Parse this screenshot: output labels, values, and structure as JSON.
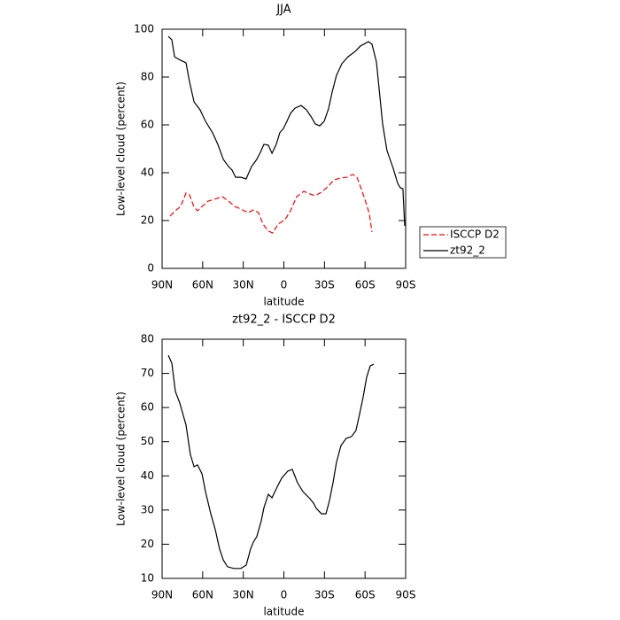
{
  "chart_data": [
    {
      "type": "line",
      "title": "JJA",
      "xlabel": "latitude",
      "ylabel": "Low-level cloud (percent)",
      "xlim": [
        90,
        -90
      ],
      "xticks": [
        {
          "value": 90,
          "label": "90N"
        },
        {
          "value": 60,
          "label": "60N"
        },
        {
          "value": 30,
          "label": "30N"
        },
        0,
        {
          "value": -30,
          "label": "30S"
        },
        {
          "value": -60,
          "label": "60S"
        },
        {
          "value": -90,
          "label": "90S"
        }
      ],
      "ylim": [
        0,
        100
      ],
      "yticks": [
        0,
        20,
        40,
        60,
        80,
        100
      ],
      "legend": "right",
      "series": [
        {
          "name": "ISCCP D2",
          "color": "#ff0000",
          "dashed": true,
          "x": [
            84.1,
            80.2,
            76.3,
            72.3,
            69.7,
            66.4,
            63.8,
            60.5,
            56.0,
            51.4,
            45.5,
            40.9,
            36.3,
            31.8,
            26.5,
            22.6,
            18.7,
            15.4,
            11.5,
            8.2,
            4.3,
            -0.9,
            -4.9,
            -9.5,
            -14.7,
            -19.3,
            -23.2,
            -27.8,
            -32.4,
            -37.0,
            -42.2,
            -46.8,
            -50.7,
            -54.0,
            -57.2,
            -60.5,
            -63.1,
            -65.1
          ],
          "values": [
            21.9,
            24.1,
            25.9,
            31.5,
            30.7,
            25.6,
            24.1,
            25.9,
            28.1,
            28.9,
            30.0,
            28.1,
            25.9,
            24.8,
            23.3,
            24.4,
            23.3,
            18.5,
            15.6,
            14.8,
            18.5,
            20.4,
            24.1,
            30.0,
            32.2,
            31.1,
            30.4,
            31.9,
            34.1,
            37.0,
            37.8,
            38.1,
            39.3,
            38.1,
            33.3,
            27.8,
            23.0,
            15.2
          ]
        },
        {
          "name": "zt92_2",
          "color": "#000000",
          "dashed": false,
          "x": [
            85.4,
            82.8,
            80.8,
            76.3,
            72.3,
            69.7,
            66.4,
            61.9,
            57.9,
            52.7,
            48.8,
            44.8,
            40.9,
            38.3,
            35.7,
            31.8,
            27.9,
            23.9,
            20.0,
            17.4,
            14.7,
            11.5,
            8.8,
            5.6,
            3.0,
            0.3,
            -2.3,
            -4.9,
            -8.2,
            -12.7,
            -16.7,
            -20.6,
            -23.2,
            -26.5,
            -29.8,
            -33.0,
            -35.7,
            -38.9,
            -42.9,
            -47.4,
            -52.7,
            -56.6,
            -59.9,
            -62.5,
            -65.1,
            -68.4,
            -73.0,
            -76.2,
            -80.8,
            -84.1,
            -86.0,
            -88.0,
            -89.3
          ],
          "values": [
            97.0,
            95.6,
            88.5,
            87.0,
            86.0,
            78.0,
            69.6,
            66.3,
            61.5,
            56.7,
            51.9,
            45.6,
            42.6,
            41.1,
            38.1,
            38.1,
            37.4,
            42.6,
            45.6,
            48.5,
            51.9,
            51.5,
            48.1,
            51.9,
            56.7,
            58.5,
            61.5,
            64.8,
            67.0,
            68.1,
            66.3,
            63.0,
            60.4,
            59.6,
            61.5,
            66.7,
            73.7,
            80.7,
            85.6,
            88.5,
            90.7,
            93.0,
            94.0,
            94.8,
            93.7,
            86.3,
            60.4,
            49.3,
            41.9,
            35.6,
            33.7,
            33.3,
            17.8
          ]
        }
      ]
    },
    {
      "type": "line",
      "title": "zt92_2 - ISCCP D2",
      "xlabel": "latitude",
      "ylabel": "Low-level cloud (percent)",
      "xlim": [
        90,
        -90
      ],
      "xticks": [
        {
          "value": 90,
          "label": "90N"
        },
        {
          "value": 60,
          "label": "60N"
        },
        {
          "value": 30,
          "label": "30N"
        },
        0,
        {
          "value": -30,
          "label": "30S"
        },
        {
          "value": -60,
          "label": "60S"
        },
        {
          "value": -90,
          "label": "90S"
        }
      ],
      "ylim": [
        10,
        80
      ],
      "yticks": [
        10,
        20,
        30,
        40,
        50,
        60,
        70,
        80
      ],
      "color": "#000000",
      "x": [
        85.4,
        82.8,
        80.2,
        76.9,
        72.3,
        69.1,
        66.4,
        63.8,
        60.5,
        57.9,
        54.0,
        50.7,
        47.5,
        44.8,
        41.6,
        37.0,
        31.8,
        27.8,
        24.6,
        22.6,
        20.0,
        16.7,
        14.7,
        11.5,
        8.8,
        5.6,
        1.7,
        -2.9,
        -6.2,
        -10.1,
        -14.1,
        -19.3,
        -21.9,
        -23.9,
        -27.8,
        -31.1,
        -33.7,
        -36.3,
        -38.9,
        -42.2,
        -46.1,
        -50.0,
        -53.3,
        -55.9,
        -58.6,
        -61.2,
        -63.8,
        -66.4
      ],
      "values": [
        75.3,
        73.0,
        64.7,
        61.3,
        54.9,
        46.3,
        42.7,
        43.2,
        40.6,
        35.4,
        28.9,
        24.3,
        18.6,
        15.4,
        13.4,
        12.9,
        12.9,
        13.9,
        18.6,
        20.6,
        22.2,
        26.9,
        30.7,
        34.6,
        33.6,
        36.2,
        39.3,
        41.4,
        41.9,
        38.0,
        35.4,
        33.3,
        32.0,
        30.5,
        28.9,
        28.9,
        32.8,
        38.0,
        44.0,
        48.9,
        51.0,
        51.5,
        53.3,
        58.0,
        63.1,
        68.9,
        72.2,
        72.7
      ]
    }
  ]
}
